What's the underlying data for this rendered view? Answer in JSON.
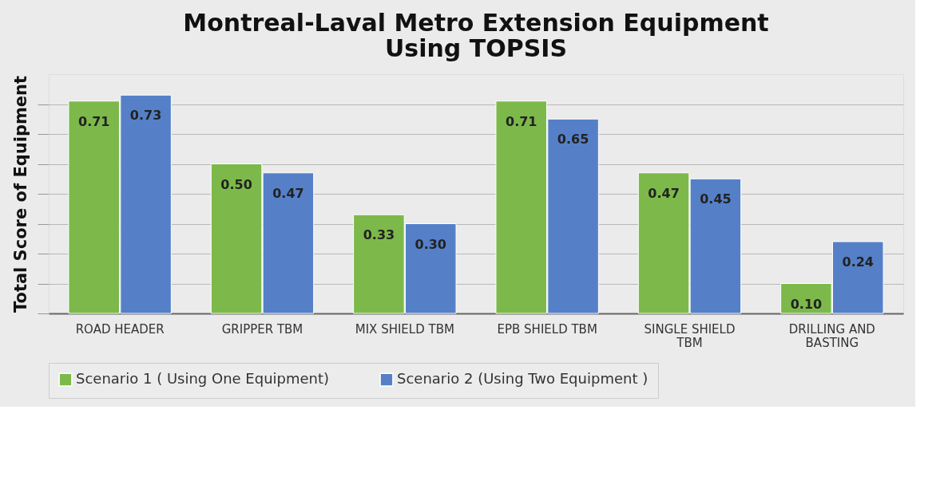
{
  "chart_data": {
    "type": "bar",
    "title": "Montreal-Laval Metro Extension Equipment Using TOPSIS",
    "ylabel": "Total Score of Equipment",
    "categories": [
      "ROAD HEADER",
      "GRIPPER TBM",
      "MIX SHIELD TBM",
      "EPB SHIELD TBM",
      "SINGLE SHIELD TBM",
      "DRILLING AND BASTING"
    ],
    "series": [
      {
        "name": "Scenario 1 ( Using One Equipment)",
        "color": "#7cb94a",
        "values": [
          0.71,
          0.5,
          0.33,
          0.71,
          0.47,
          0.1
        ],
        "value_labels": [
          "0.71",
          "0.50",
          "0.33",
          "0.71",
          "0.47",
          "0.10"
        ]
      },
      {
        "name": "Scenario 2 (Using Two Equipment )",
        "color": "#5580c8",
        "values": [
          0.73,
          0.47,
          0.3,
          0.65,
          0.45,
          0.24
        ],
        "value_labels": [
          "0.73",
          "0.47",
          "0.30",
          "0.65",
          "0.45",
          "0.24"
        ]
      }
    ],
    "ylim": [
      0,
      0.8
    ],
    "yticks": [
      {
        "value": 0,
        "label": null
      },
      {
        "value": 0.1,
        "label": null
      },
      {
        "value": 0.2,
        "label": null
      },
      {
        "value": 0.3,
        "label": null
      },
      {
        "value": 0.4,
        "label": null
      },
      {
        "value": 0.5,
        "label": null
      },
      {
        "value": 0.6,
        "label": null
      },
      {
        "value": 0.7,
        "label": null
      }
    ],
    "grid": "y",
    "legend": "bottom",
    "tick_labels": "x"
  }
}
